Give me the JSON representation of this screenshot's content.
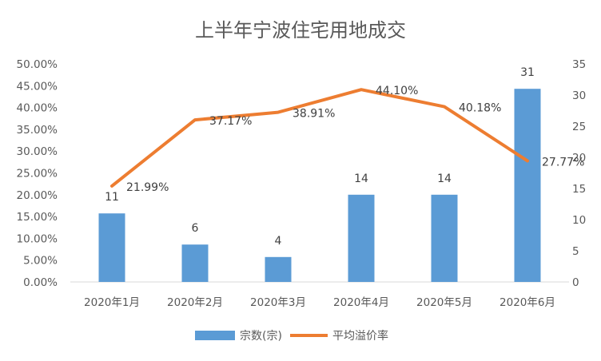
{
  "chart_data": {
    "type": "bar+line",
    "title": "上半年宁波住宅用地成交",
    "categories": [
      "2020年1月",
      "2020年2月",
      "2020年3月",
      "2020年4月",
      "2020年5月",
      "2020年6月"
    ],
    "series": [
      {
        "name": "宗数(宗)",
        "type": "bar",
        "axis": "right",
        "color": "#5b9bd5",
        "values": [
          11,
          6,
          4,
          14,
          14,
          31
        ],
        "labels": [
          "11",
          "6",
          "4",
          "14",
          "14",
          "31"
        ]
      },
      {
        "name": "平均溢价率",
        "type": "line",
        "axis": "left",
        "color": "#ed7d31",
        "values": [
          21.99,
          37.17,
          38.91,
          44.1,
          40.18,
          27.77
        ],
        "labels": [
          "21.99%",
          "37.17%",
          "38.91%",
          "44.10%",
          "40.18%",
          "27.77%"
        ]
      }
    ],
    "y_left": {
      "min": 0,
      "max": 50,
      "step": 5,
      "tick_labels": [
        "0.00%",
        "5.00%",
        "10.00%",
        "15.00%",
        "20.00%",
        "25.00%",
        "30.00%",
        "35.00%",
        "40.00%",
        "45.00%",
        "50.00%"
      ]
    },
    "y_right": {
      "min": 0,
      "max": 35,
      "step": 5,
      "tick_labels": [
        "0",
        "5",
        "10",
        "15",
        "20",
        "25",
        "30",
        "35"
      ]
    },
    "grid": false,
    "legend": "bottom"
  }
}
